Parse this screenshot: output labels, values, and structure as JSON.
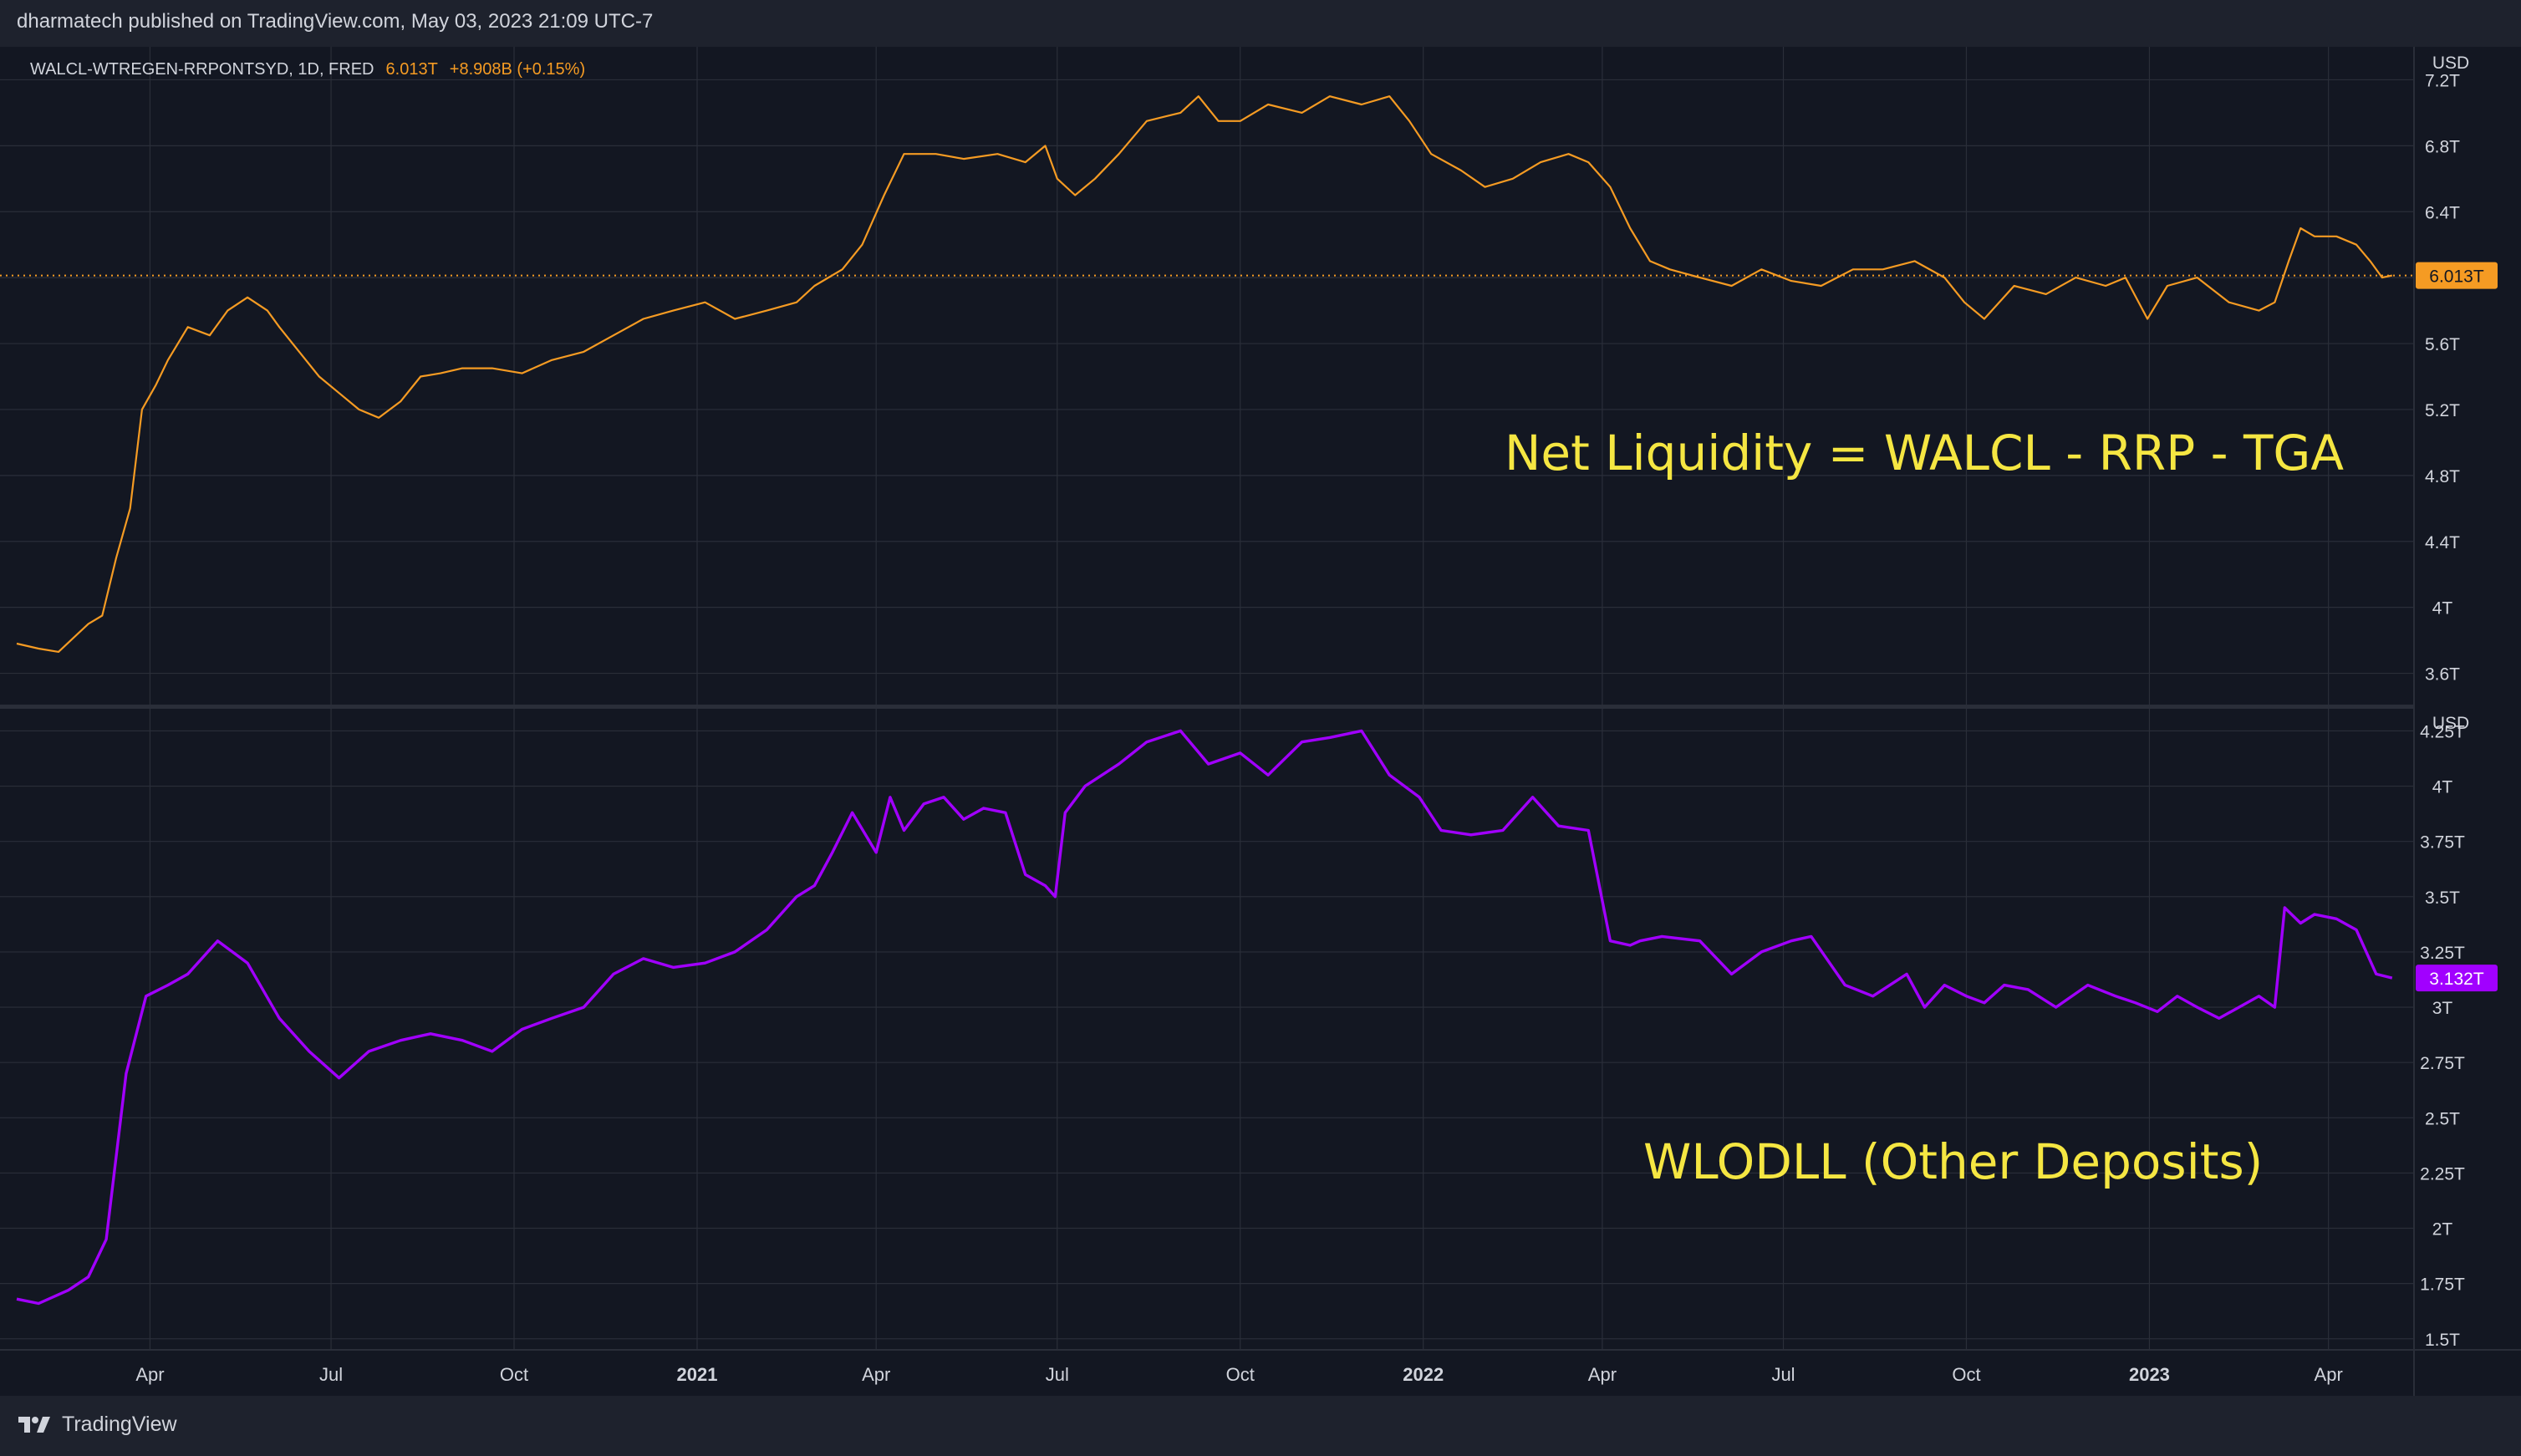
{
  "header": {
    "publisher_text": "dharmatech published on TradingView.com, May 03, 2023 21:09 UTC-7"
  },
  "footer": {
    "logo_text": "TradingView"
  },
  "colors": {
    "background": "#131722",
    "grid": "#2a2e39",
    "axis_text": "#d1d4dc",
    "net_liquidity_line": "#f59b23",
    "wlodll_line": "#a100ff",
    "annotation_text": "#f5e642",
    "price_change": "#f59b23"
  },
  "legend": {
    "symbol": "WALCL-WTREGEN-RRPONTSYD, 1D, FRED",
    "last_value": "6.013T",
    "change": "+8.908B (+0.15%)"
  },
  "annotations": {
    "top": "Net Liquidity = WALCL - RRP - TGA",
    "bottom": "WLODLL (Other Deposits)"
  },
  "chart_data": [
    {
      "type": "line",
      "xlabel": "",
      "ylabel": "",
      "currency": "USD",
      "x_ticks": [
        "Apr",
        "Jul",
        "Oct",
        "2021",
        "Apr",
        "Jul",
        "Oct",
        "2022",
        "Apr",
        "Jul",
        "Oct",
        "2023",
        "Apr"
      ],
      "x_tick_dates": [
        "2020-04-01",
        "2020-07-01",
        "2020-10-01",
        "2021-01-01",
        "2021-04-01",
        "2021-07-01",
        "2021-10-01",
        "2022-01-01",
        "2022-04-01",
        "2022-07-01",
        "2022-10-01",
        "2023-01-01",
        "2023-04-01"
      ],
      "x_range": [
        "2020-01-25",
        "2023-05-14"
      ],
      "ylim": [
        3.4,
        7.4
      ],
      "y_ticks": [
        "7.2T",
        "6.8T",
        "6.4T",
        "6T",
        "5.6T",
        "5.2T",
        "4.8T",
        "4.4T",
        "4T",
        "3.6T"
      ],
      "y_tick_values": [
        7.2,
        6.8,
        6.4,
        6.0,
        5.6,
        5.2,
        4.8,
        4.4,
        4.0,
        3.6
      ],
      "hidden_tick": "6T",
      "last_value_label": "6.013T",
      "last_value": 6.013,
      "series": [
        {
          "x": [
            "2020-01-25",
            "2020-02-05",
            "2020-02-15",
            "2020-03-01",
            "2020-03-08",
            "2020-03-15",
            "2020-03-22",
            "2020-03-28",
            "2020-04-04",
            "2020-04-10",
            "2020-04-20",
            "2020-05-01",
            "2020-05-10",
            "2020-05-20",
            "2020-05-30",
            "2020-06-05",
            "2020-06-15",
            "2020-06-25",
            "2020-07-05",
            "2020-07-15",
            "2020-07-25",
            "2020-08-05",
            "2020-08-15",
            "2020-08-25",
            "2020-09-05",
            "2020-09-20",
            "2020-10-05",
            "2020-10-20",
            "2020-11-05",
            "2020-11-20",
            "2020-12-05",
            "2020-12-20",
            "2021-01-05",
            "2021-01-20",
            "2021-02-05",
            "2021-02-20",
            "2021-03-01",
            "2021-03-15",
            "2021-03-25",
            "2021-04-05",
            "2021-04-15",
            "2021-05-01",
            "2021-05-15",
            "2021-06-01",
            "2021-06-15",
            "2021-06-25",
            "2021-07-01",
            "2021-07-10",
            "2021-07-20",
            "2021-08-01",
            "2021-08-15",
            "2021-09-01",
            "2021-09-10",
            "2021-09-20",
            "2021-10-01",
            "2021-10-15",
            "2021-11-01",
            "2021-11-15",
            "2021-12-01",
            "2021-12-15",
            "2021-12-25",
            "2022-01-05",
            "2022-01-20",
            "2022-02-01",
            "2022-02-15",
            "2022-03-01",
            "2022-03-15",
            "2022-03-25",
            "2022-04-05",
            "2022-04-15",
            "2022-04-25",
            "2022-05-05",
            "2022-05-20",
            "2022-06-05",
            "2022-06-20",
            "2022-07-05",
            "2022-07-20",
            "2022-08-05",
            "2022-08-20",
            "2022-09-05",
            "2022-09-20",
            "2022-09-30",
            "2022-10-10",
            "2022-10-25",
            "2022-11-10",
            "2022-11-25",
            "2022-12-10",
            "2022-12-20",
            "2022-12-31",
            "2023-01-10",
            "2023-01-25",
            "2023-02-10",
            "2023-02-25",
            "2023-03-05",
            "2023-03-12",
            "2023-03-18",
            "2023-03-25",
            "2023-04-05",
            "2023-04-15",
            "2023-04-22",
            "2023-04-28",
            "2023-05-03"
          ],
          "values": [
            3.78,
            3.75,
            3.73,
            3.9,
            3.95,
            4.3,
            4.6,
            5.2,
            5.35,
            5.5,
            5.7,
            5.65,
            5.8,
            5.88,
            5.8,
            5.7,
            5.55,
            5.4,
            5.3,
            5.2,
            5.15,
            5.25,
            5.4,
            5.42,
            5.45,
            5.45,
            5.42,
            5.5,
            5.55,
            5.65,
            5.75,
            5.8,
            5.85,
            5.75,
            5.8,
            5.85,
            5.95,
            6.05,
            6.2,
            6.5,
            6.75,
            6.75,
            6.72,
            6.75,
            6.7,
            6.8,
            6.6,
            6.5,
            6.6,
            6.75,
            6.95,
            7.0,
            7.1,
            6.95,
            6.95,
            7.05,
            7.0,
            7.1,
            7.05,
            7.1,
            6.95,
            6.75,
            6.65,
            6.55,
            6.6,
            6.7,
            6.75,
            6.7,
            6.55,
            6.3,
            6.1,
            6.05,
            6.0,
            5.95,
            6.05,
            5.98,
            5.95,
            6.05,
            6.05,
            6.1,
            6.0,
            5.85,
            5.75,
            5.95,
            5.9,
            6.0,
            5.95,
            6.0,
            5.75,
            5.95,
            6.0,
            5.85,
            5.8,
            5.85,
            6.1,
            6.3,
            6.25,
            6.25,
            6.2,
            6.1,
            6.0,
            6.013
          ]
        }
      ]
    },
    {
      "type": "line",
      "xlabel": "",
      "ylabel": "",
      "currency": "USD",
      "x_range": [
        "2020-01-25",
        "2023-05-14"
      ],
      "ylim": [
        1.45,
        4.35
      ],
      "y_ticks": [
        "4.25T",
        "4T",
        "3.75T",
        "3.5T",
        "3.25T",
        "3T",
        "2.75T",
        "2.5T",
        "2.25T",
        "2T",
        "1.75T",
        "1.5T"
      ],
      "y_tick_values": [
        4.25,
        4.0,
        3.75,
        3.5,
        3.25,
        3.0,
        2.75,
        2.5,
        2.25,
        2.0,
        1.75,
        1.5
      ],
      "last_value_label": "3.132T",
      "last_value": 3.132,
      "series": [
        {
          "x": [
            "2020-01-25",
            "2020-02-05",
            "2020-02-20",
            "2020-03-01",
            "2020-03-10",
            "2020-03-20",
            "2020-03-30",
            "2020-04-10",
            "2020-04-20",
            "2020-05-05",
            "2020-05-20",
            "2020-06-05",
            "2020-06-20",
            "2020-07-05",
            "2020-07-20",
            "2020-08-05",
            "2020-08-20",
            "2020-09-05",
            "2020-09-20",
            "2020-10-05",
            "2020-10-20",
            "2020-11-05",
            "2020-11-20",
            "2020-12-05",
            "2020-12-20",
            "2021-01-05",
            "2021-01-20",
            "2021-02-05",
            "2021-02-20",
            "2021-03-01",
            "2021-03-10",
            "2021-03-20",
            "2021-04-01",
            "2021-04-08",
            "2021-04-15",
            "2021-04-25",
            "2021-05-05",
            "2021-05-15",
            "2021-05-25",
            "2021-06-05",
            "2021-06-15",
            "2021-06-25",
            "2021-06-30",
            "2021-07-05",
            "2021-07-15",
            "2021-08-01",
            "2021-08-15",
            "2021-09-01",
            "2021-09-15",
            "2021-10-01",
            "2021-10-15",
            "2021-11-01",
            "2021-11-15",
            "2021-12-01",
            "2021-12-15",
            "2021-12-30",
            "2022-01-10",
            "2022-01-25",
            "2022-02-10",
            "2022-02-25",
            "2022-03-10",
            "2022-03-25",
            "2022-04-05",
            "2022-04-15",
            "2022-04-20",
            "2022-05-01",
            "2022-05-20",
            "2022-06-05",
            "2022-06-20",
            "2022-07-05",
            "2022-07-15",
            "2022-08-01",
            "2022-08-15",
            "2022-09-01",
            "2022-09-10",
            "2022-09-20",
            "2022-10-01",
            "2022-10-10",
            "2022-10-20",
            "2022-11-01",
            "2022-11-15",
            "2022-12-01",
            "2022-12-15",
            "2022-12-25",
            "2023-01-05",
            "2023-01-15",
            "2023-01-25",
            "2023-02-05",
            "2023-02-15",
            "2023-02-25",
            "2023-03-05",
            "2023-03-10",
            "2023-03-18",
            "2023-03-25",
            "2023-04-05",
            "2023-04-15",
            "2023-04-25",
            "2023-05-03"
          ],
          "values": [
            1.68,
            1.66,
            1.72,
            1.78,
            1.95,
            2.7,
            3.05,
            3.1,
            3.15,
            3.3,
            3.2,
            2.95,
            2.8,
            2.68,
            2.8,
            2.85,
            2.88,
            2.85,
            2.8,
            2.9,
            2.95,
            3.0,
            3.15,
            3.22,
            3.18,
            3.2,
            3.25,
            3.35,
            3.5,
            3.55,
            3.7,
            3.88,
            3.7,
            3.95,
            3.8,
            3.92,
            3.95,
            3.85,
            3.9,
            3.88,
            3.6,
            3.55,
            3.5,
            3.88,
            4.0,
            4.1,
            4.2,
            4.25,
            4.1,
            4.15,
            4.05,
            4.2,
            4.22,
            4.25,
            4.05,
            3.95,
            3.8,
            3.78,
            3.8,
            3.95,
            3.82,
            3.8,
            3.3,
            3.28,
            3.3,
            3.32,
            3.3,
            3.15,
            3.25,
            3.3,
            3.32,
            3.1,
            3.05,
            3.15,
            3.0,
            3.1,
            3.05,
            3.02,
            3.1,
            3.08,
            3.0,
            3.1,
            3.05,
            3.02,
            2.98,
            3.05,
            3.0,
            2.95,
            3.0,
            3.05,
            3.0,
            3.45,
            3.38,
            3.42,
            3.4,
            3.35,
            3.15,
            3.132
          ]
        }
      ]
    }
  ]
}
